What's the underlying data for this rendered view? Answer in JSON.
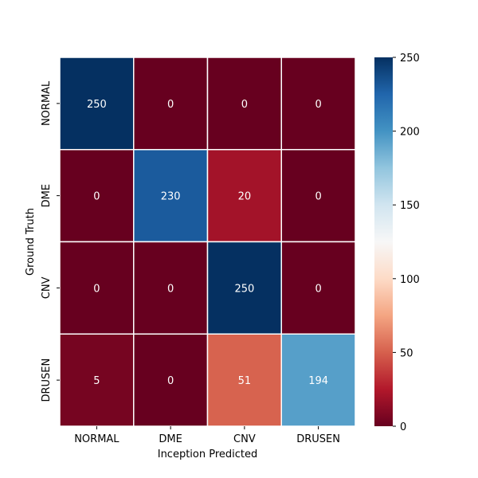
{
  "chart_data": {
    "type": "heatmap",
    "title": "",
    "xlabel": "Inception Predicted",
    "ylabel": "Ground Truth",
    "x_categories": [
      "NORMAL",
      "DME",
      "CNV",
      "DRUSEN"
    ],
    "y_categories": [
      "NORMAL",
      "DME",
      "CNV",
      "DRUSEN"
    ],
    "values": [
      [
        250,
        0,
        0,
        0
      ],
      [
        0,
        230,
        20,
        0
      ],
      [
        0,
        0,
        250,
        0
      ],
      [
        5,
        0,
        51,
        194
      ]
    ],
    "colormap": "RdBu",
    "vmin": 0,
    "vmax": 250,
    "colorbar_ticks": [
      0,
      50,
      100,
      150,
      200,
      250
    ],
    "annotation_color": "#ffffff"
  }
}
